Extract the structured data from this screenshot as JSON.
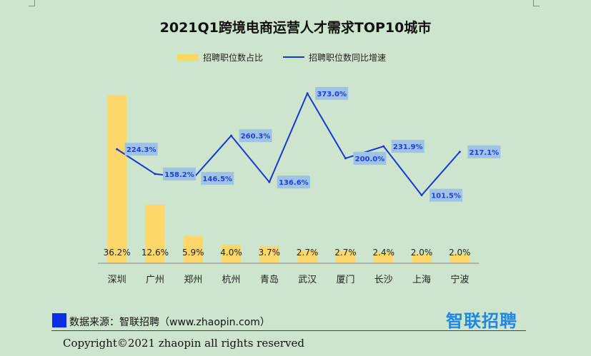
{
  "title": "2021Q1跨境电商运营人才需求TOP10城市",
  "legend": {
    "bar_label": "招聘职位数占比",
    "line_label": "招聘职位数同比增速"
  },
  "colors": {
    "bar": "#fdd76a",
    "line": "#1a35d6",
    "line_label_bg": "#9ec3e6",
    "line_label_text": "#1f3fd8",
    "background": "#cce5cc"
  },
  "chart_data": {
    "type": "bar+line",
    "title": "2021Q1跨境电商运营人才需求TOP10城市",
    "categories": [
      "深圳",
      "广州",
      "郑州",
      "杭州",
      "青岛",
      "武汉",
      "厦门",
      "长沙",
      "上海",
      "宁波"
    ],
    "series": [
      {
        "name": "招聘职位数占比",
        "type": "bar",
        "unit": "%",
        "values": [
          36.2,
          12.6,
          5.9,
          4.0,
          3.7,
          2.7,
          2.7,
          2.4,
          2.0,
          2.0
        ],
        "labels": [
          "36.2%",
          "12.6%",
          "5.9%",
          "4.0%",
          "3.7%",
          "2.7%",
          "2.7%",
          "2.4%",
          "2.0%",
          "2.0%"
        ]
      },
      {
        "name": "招聘职位数同比增速",
        "type": "line",
        "unit": "%",
        "values": [
          224.3,
          158.2,
          146.5,
          260.3,
          136.6,
          373.0,
          200.0,
          231.9,
          101.5,
          217.1
        ],
        "labels": [
          "224.3%",
          "158.2%",
          "146.5%",
          "260.3%",
          "136.6%",
          "373.0%",
          "200.0%",
          "231.9%",
          "101.5%",
          "217.1%"
        ]
      }
    ],
    "bar_ylim": [
      0,
      38
    ],
    "line_ylim": [
      -80,
      390
    ],
    "legend_position": "top-center",
    "grid": false
  },
  "footer": {
    "source": "数据来源：智联招聘（www.zhaopin.com）",
    "logo_text": "智联招聘",
    "copyright": "Copyright©2021 zhaopin all rights reserved"
  }
}
